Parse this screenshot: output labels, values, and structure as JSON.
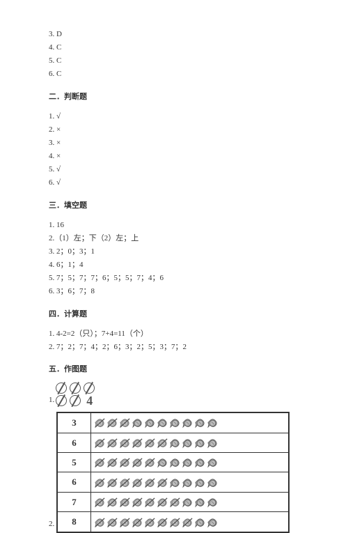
{
  "top_answers": [
    "3. D",
    "4. C",
    "5. C",
    "6. C"
  ],
  "sections": [
    {
      "title": "二．判断题",
      "items": [
        "1. √",
        "2. ×",
        "3. ×",
        "4. ×",
        "5. √",
        "6. √"
      ]
    },
    {
      "title": "三．填空题",
      "items": [
        "1. 16",
        "2.（1）左；下（2）左；上",
        "3. 2；0；3；1",
        "4. 6；1；4",
        "5. 7；5；7；7；6；5；5；7；4；6",
        "6. 3；6；7；8"
      ]
    },
    {
      "title": "四．计算题",
      "items": [
        "1. 4-2=2（只）；7+4=11（个）",
        "2. 7；2；7；4；2；6；3；2；5；3；7；2"
      ]
    },
    {
      "title": "五．作图题",
      "items": []
    }
  ],
  "drawing1": {
    "label": "1.",
    "row1": {
      "type": "slash-circle",
      "count": 3
    },
    "row2": {
      "circles": 2,
      "number": "4"
    }
  },
  "drawing2": {
    "label": "2.",
    "rows": [
      {
        "num": "3",
        "total": 10,
        "crossed": 3
      },
      {
        "num": "6",
        "total": 10,
        "crossed": 6
      },
      {
        "num": "5",
        "total": 10,
        "crossed": 5
      },
      {
        "num": "6",
        "total": 10,
        "crossed": 6
      },
      {
        "num": "7",
        "total": 10,
        "crossed": 7
      },
      {
        "num": "8",
        "total": 10,
        "crossed": 8
      }
    ]
  },
  "colors": {
    "text": "#333333",
    "border": "#333333",
    "circle": "#555555",
    "icon_base": "#888888",
    "icon_dark": "#555555"
  }
}
